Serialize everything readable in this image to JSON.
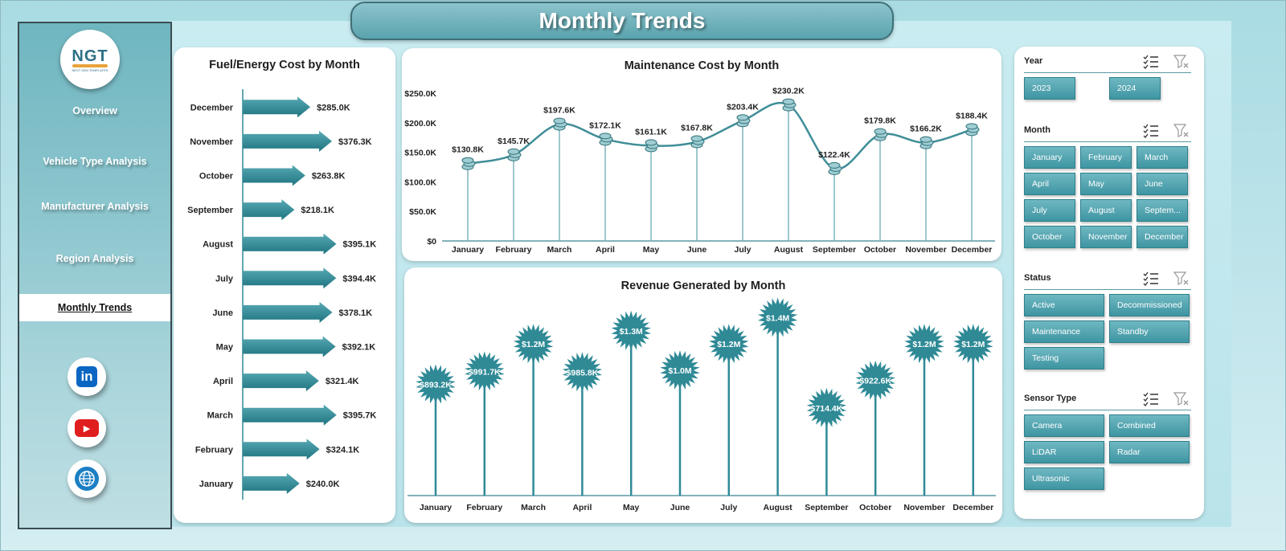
{
  "title": "Monthly Trends",
  "logo": {
    "text": "NGT",
    "subtext": "NEXT GEN TEMPLATES"
  },
  "nav": [
    {
      "label": "Overview",
      "active": false
    },
    {
      "label": "Vehicle Type Analysis",
      "active": false
    },
    {
      "label": "Manufacturer Analysis",
      "active": false
    },
    {
      "label": "Region Analysis",
      "active": false
    },
    {
      "label": "Monthly Trends",
      "active": true
    }
  ],
  "social": [
    {
      "icon": "linkedin-icon",
      "label": "in",
      "color": "#0a66c2"
    },
    {
      "icon": "youtube-icon",
      "label": "▶",
      "color": "#e01e1e"
    },
    {
      "icon": "globe-icon",
      "label": "",
      "color": "#1b7fc4"
    }
  ],
  "chart_data": [
    {
      "type": "bar",
      "orientation": "horizontal",
      "title": "Fuel/Energy  Cost by Month",
      "categories": [
        "December",
        "November",
        "October",
        "September",
        "August",
        "July",
        "June",
        "May",
        "April",
        "March",
        "February",
        "January"
      ],
      "values": [
        285.0,
        376.3,
        263.8,
        218.1,
        395.1,
        394.4,
        378.1,
        392.1,
        321.4,
        395.7,
        324.1,
        240.0
      ],
      "labels": [
        "$285.0K",
        "$376.3K",
        "$263.8K",
        "$218.1K",
        "$395.1K",
        "$394.4K",
        "$378.1K",
        "$392.1K",
        "$321.4K",
        "$395.7K",
        "$324.1K",
        "$240.0K"
      ],
      "unit": "K",
      "color": "#2f8a96"
    },
    {
      "type": "line",
      "title": "Maintenance  Cost by Month",
      "categories": [
        "January",
        "February",
        "March",
        "April",
        "May",
        "June",
        "July",
        "August",
        "September",
        "October",
        "November",
        "December"
      ],
      "values": [
        130.8,
        145.7,
        197.6,
        172.1,
        161.1,
        167.8,
        203.4,
        230.2,
        122.4,
        179.8,
        166.2,
        188.4
      ],
      "labels": [
        "$130.8K",
        "$145.7K",
        "$197.6K",
        "$172.1K",
        "$161.1K",
        "$167.8K",
        "$203.4K",
        "$230.2K",
        "$122.4K",
        "$179.8K",
        "$166.2K",
        "$188.4K"
      ],
      "yticks": [
        "$0",
        "$50.0K",
        "$100.0K",
        "$150.0K",
        "$200.0K",
        "$250.0K"
      ],
      "ylim": [
        0,
        250
      ],
      "color": "#3f8e98"
    },
    {
      "type": "lollipop",
      "title": "Revenue  Generated by Month",
      "categories": [
        "January",
        "February",
        "March",
        "April",
        "May",
        "June",
        "July",
        "August",
        "September",
        "October",
        "November",
        "December"
      ],
      "values": [
        893.2,
        991.7,
        1200,
        985.8,
        1300,
        1000,
        1200,
        1400,
        714.4,
        922.6,
        1200,
        1200
      ],
      "labels": [
        "$893.2K",
        "$991.7K",
        "$1.2M",
        "$985.8K",
        "$1.3M",
        "$1.0M",
        "$1.2M",
        "$1.4M",
        "$714.4K",
        "$922.6K",
        "$1.2M",
        "$1.2M"
      ],
      "ylim": [
        0,
        1500
      ],
      "color": "#2f8a96"
    }
  ],
  "slicers": [
    {
      "title": "Year",
      "items": [
        "2023",
        "2024"
      ],
      "cols": 2,
      "chipWidth": 64
    },
    {
      "title": "Month",
      "items": [
        "January",
        "February",
        "March",
        "April",
        "May",
        "June",
        "July",
        "August",
        "Septem...",
        "October",
        "November",
        "December"
      ],
      "cols": 3,
      "chipWidth": 64
    },
    {
      "title": "Status",
      "items": [
        "Active",
        "Decommissioned",
        "Maintenance",
        "Standby",
        "Testing"
      ],
      "cols": 2,
      "chipWidth": 100
    },
    {
      "title": "Sensor Type",
      "items": [
        "Camera",
        "Combined",
        "LiDAR",
        "Radar",
        "Ultrasonic"
      ],
      "cols": 2,
      "chipWidth": 100
    }
  ]
}
